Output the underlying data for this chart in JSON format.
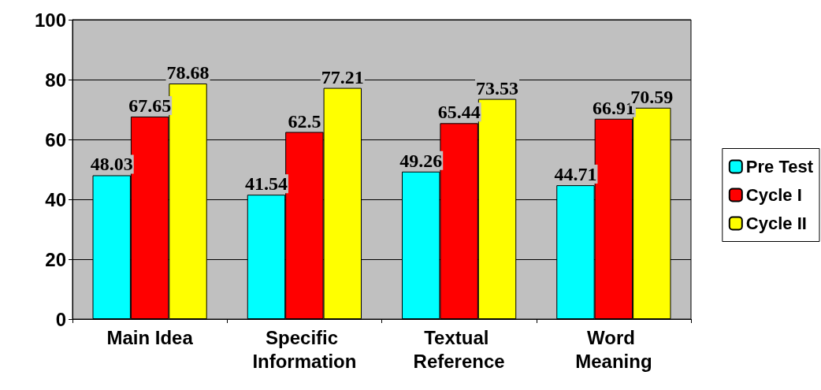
{
  "chart_data": {
    "type": "bar",
    "categories": [
      "Main Idea",
      "Specific Information",
      "Textual Reference",
      "Word Meaning"
    ],
    "series": [
      {
        "name": "Pre Test",
        "color": "#00ffff",
        "values": [
          48.03,
          41.54,
          49.26,
          44.71
        ]
      },
      {
        "name": "Cycle I",
        "color": "#ff0000",
        "values": [
          67.65,
          62.5,
          65.44,
          66.91
        ]
      },
      {
        "name": "Cycle II",
        "color": "#ffff00",
        "values": [
          78.68,
          77.21,
          73.53,
          70.59
        ]
      }
    ],
    "ylim": [
      0,
      100
    ],
    "yticks": [
      0,
      20,
      40,
      60,
      80,
      100
    ],
    "grid": "y",
    "legend": "right",
    "data_labels": true
  }
}
